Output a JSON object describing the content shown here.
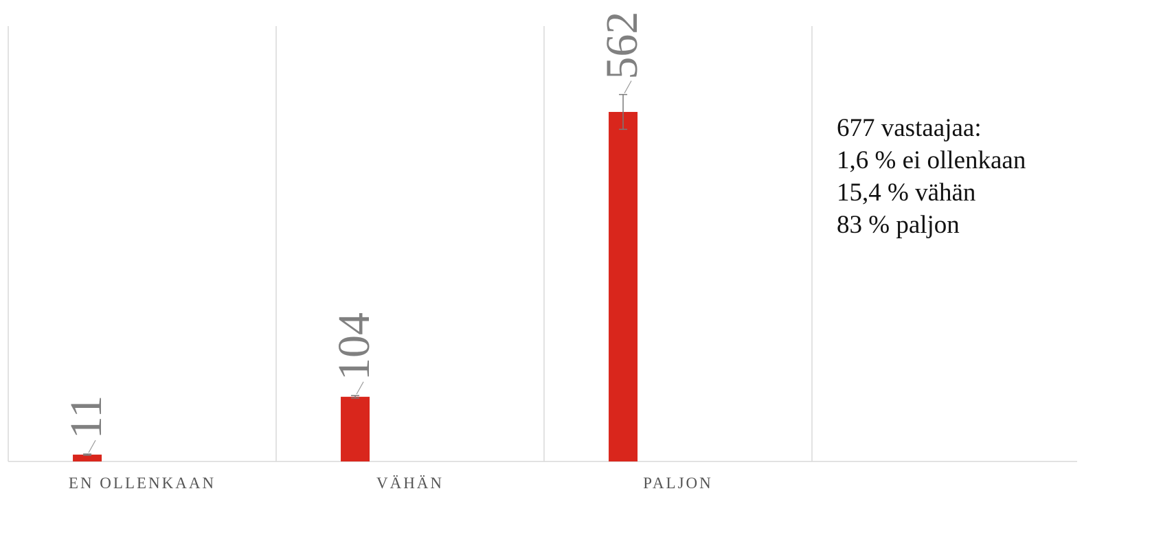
{
  "chart_data": {
    "type": "bar",
    "categories": [
      "EN OLLENKAAN",
      "VÄHÄN",
      "PALJON",
      null
    ],
    "values": [
      11,
      104,
      562,
      null
    ],
    "errors": [
      1,
      2,
      28,
      null
    ],
    "color": "#d9261c",
    "ylim": [
      0,
      700
    ],
    "grid": true,
    "annotation": [
      "677 vastaajaa:",
      "1,6 % ei ollenkaan",
      "15,4 % vähän",
      "83 % paljon"
    ]
  }
}
